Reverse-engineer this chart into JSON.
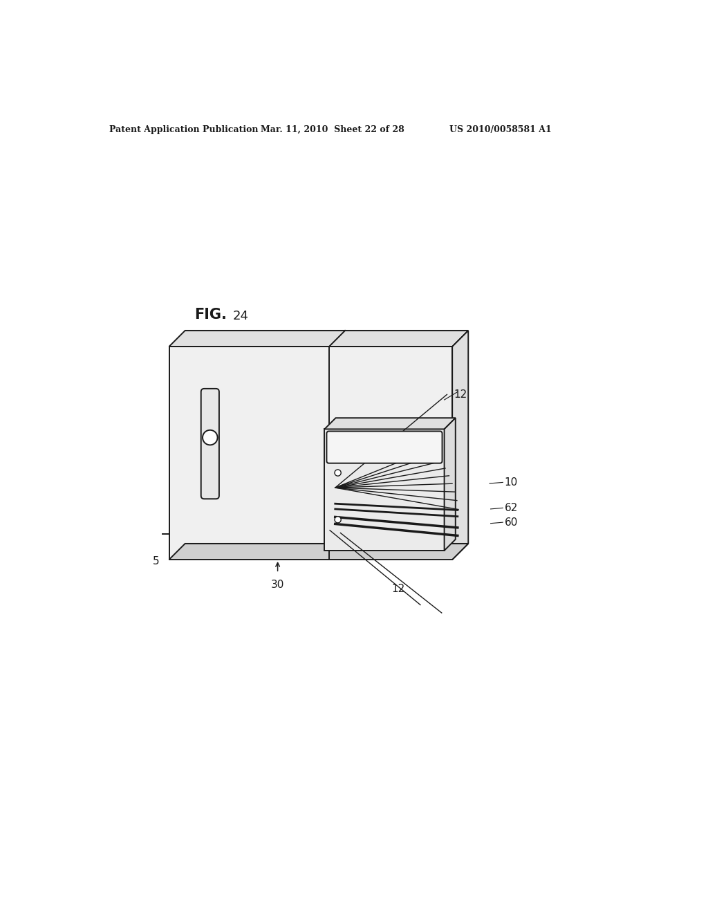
{
  "bg_color": "#ffffff",
  "lc": "#1a1a1a",
  "header_left": "Patent Application Publication",
  "header_mid": "Mar. 11, 2010  Sheet 22 of 28",
  "header_right": "US 2010/0058581 A1",
  "fig_label": "FIG.",
  "fig_num": "24",
  "lbl_5": "5",
  "lbl_30": "30",
  "lbl_12_top": "12",
  "lbl_12_bot": "12",
  "lbl_10": "10",
  "lbl_62": "62",
  "lbl_60": "60",
  "panel_gray": "#f0f0f0",
  "panel_mid_gray": "#e0e0e0",
  "panel_dark_gray": "#d0d0d0"
}
